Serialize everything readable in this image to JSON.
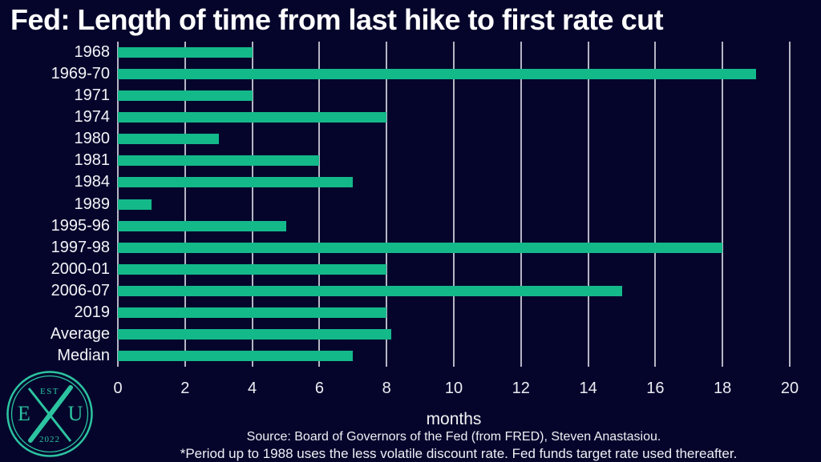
{
  "title": "Fed: Length of time from last hike to first rate cut",
  "chart_data": {
    "type": "bar",
    "orientation": "horizontal",
    "title": "Fed: Length of time from last hike to first rate cut",
    "categories": [
      "1968",
      "1969-70",
      "1971",
      "1974",
      "1980",
      "1981",
      "1984",
      "1989",
      "1995-96",
      "1997-98",
      "2000-01",
      "2006-07",
      "2019",
      "Average",
      "Median"
    ],
    "values": [
      4,
      19,
      4,
      8,
      3,
      6,
      7,
      1,
      5,
      18,
      8,
      15,
      8,
      8.15,
      7
    ],
    "xlabel": "months",
    "ylabel": "",
    "xlim": [
      0,
      20
    ],
    "xticks": [
      0,
      2,
      4,
      6,
      8,
      10,
      12,
      14,
      16,
      18,
      20
    ],
    "grid": "vertical-only",
    "legend": "none",
    "bar_color": "#14b98a",
    "background_color": "#05052c",
    "gridline_color": "#b5b5c4"
  },
  "footer": {
    "source": "Source: Board of Governors of the Fed (from FRED), Steven Anastasiou.",
    "footnote": "*Period up to 1988 uses the less volatile discount rate. Fed funds target rate used thereafter."
  },
  "logo": {
    "est_label": "EST",
    "year_label": "2022",
    "left_letter": "E",
    "right_letter": "U",
    "color": "#2cc4a0"
  }
}
